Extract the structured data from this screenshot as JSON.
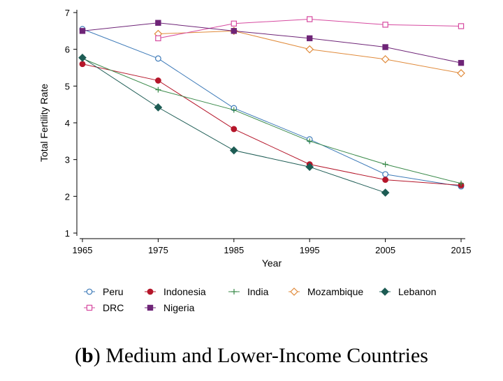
{
  "chart_data": {
    "type": "line",
    "xlabel": "Year",
    "ylabel": "Total Fertility Rate",
    "xlim": [
      1965,
      2015
    ],
    "ylim": [
      1,
      7
    ],
    "xticks": [
      "1965",
      "1975",
      "1985",
      "1995",
      "2005",
      "2015"
    ],
    "yticks": [
      "1",
      "2",
      "3",
      "4",
      "5",
      "6",
      "7"
    ],
    "grid": false,
    "legend_position": "bottom",
    "series": [
      {
        "name": "Peru",
        "color": "#3d7ab8",
        "marker": "circle-open",
        "x": [
          1965,
          1975,
          1985,
          1995,
          2005,
          2015
        ],
        "y": [
          6.55,
          5.75,
          4.4,
          3.55,
          2.6,
          2.27
        ]
      },
      {
        "name": "Indonesia",
        "color": "#b5162a",
        "marker": "circle-filled",
        "x": [
          1965,
          1975,
          1985,
          1995,
          2005,
          2015
        ],
        "y": [
          5.6,
          5.15,
          3.83,
          2.87,
          2.45,
          2.3
        ]
      },
      {
        "name": "India",
        "color": "#3a8a4a",
        "marker": "plus",
        "x": [
          1965,
          1975,
          1985,
          1995,
          2005,
          2015
        ],
        "y": [
          5.75,
          4.9,
          4.35,
          3.5,
          2.87,
          2.35
        ]
      },
      {
        "name": "Mozambique",
        "color": "#e08a3a",
        "marker": "diamond-open",
        "x": [
          1975,
          1985,
          1995,
          2005,
          2015
        ],
        "y": [
          6.42,
          6.5,
          6.0,
          5.73,
          5.35
        ]
      },
      {
        "name": "Lebanon",
        "color": "#1d5c54",
        "marker": "diamond-filled",
        "x": [
          1965,
          1975,
          1985,
          1995,
          2005
        ],
        "y": [
          5.77,
          4.42,
          3.25,
          2.8,
          2.1
        ]
      },
      {
        "name": "DRC",
        "color": "#d64aa0",
        "marker": "square-open",
        "x": [
          1975,
          1985,
          1995,
          2005,
          2015
        ],
        "y": [
          6.3,
          6.7,
          6.82,
          6.67,
          6.63
        ]
      },
      {
        "name": "Nigeria",
        "color": "#6e2477",
        "marker": "square-filled",
        "x": [
          1965,
          1975,
          1985,
          1995,
          2005,
          2015
        ],
        "y": [
          6.5,
          6.72,
          6.5,
          6.3,
          6.06,
          5.63
        ]
      }
    ]
  },
  "caption": {
    "open_paren": "(",
    "letter": "b",
    "text": ") Medium and Lower-Income Countries"
  }
}
